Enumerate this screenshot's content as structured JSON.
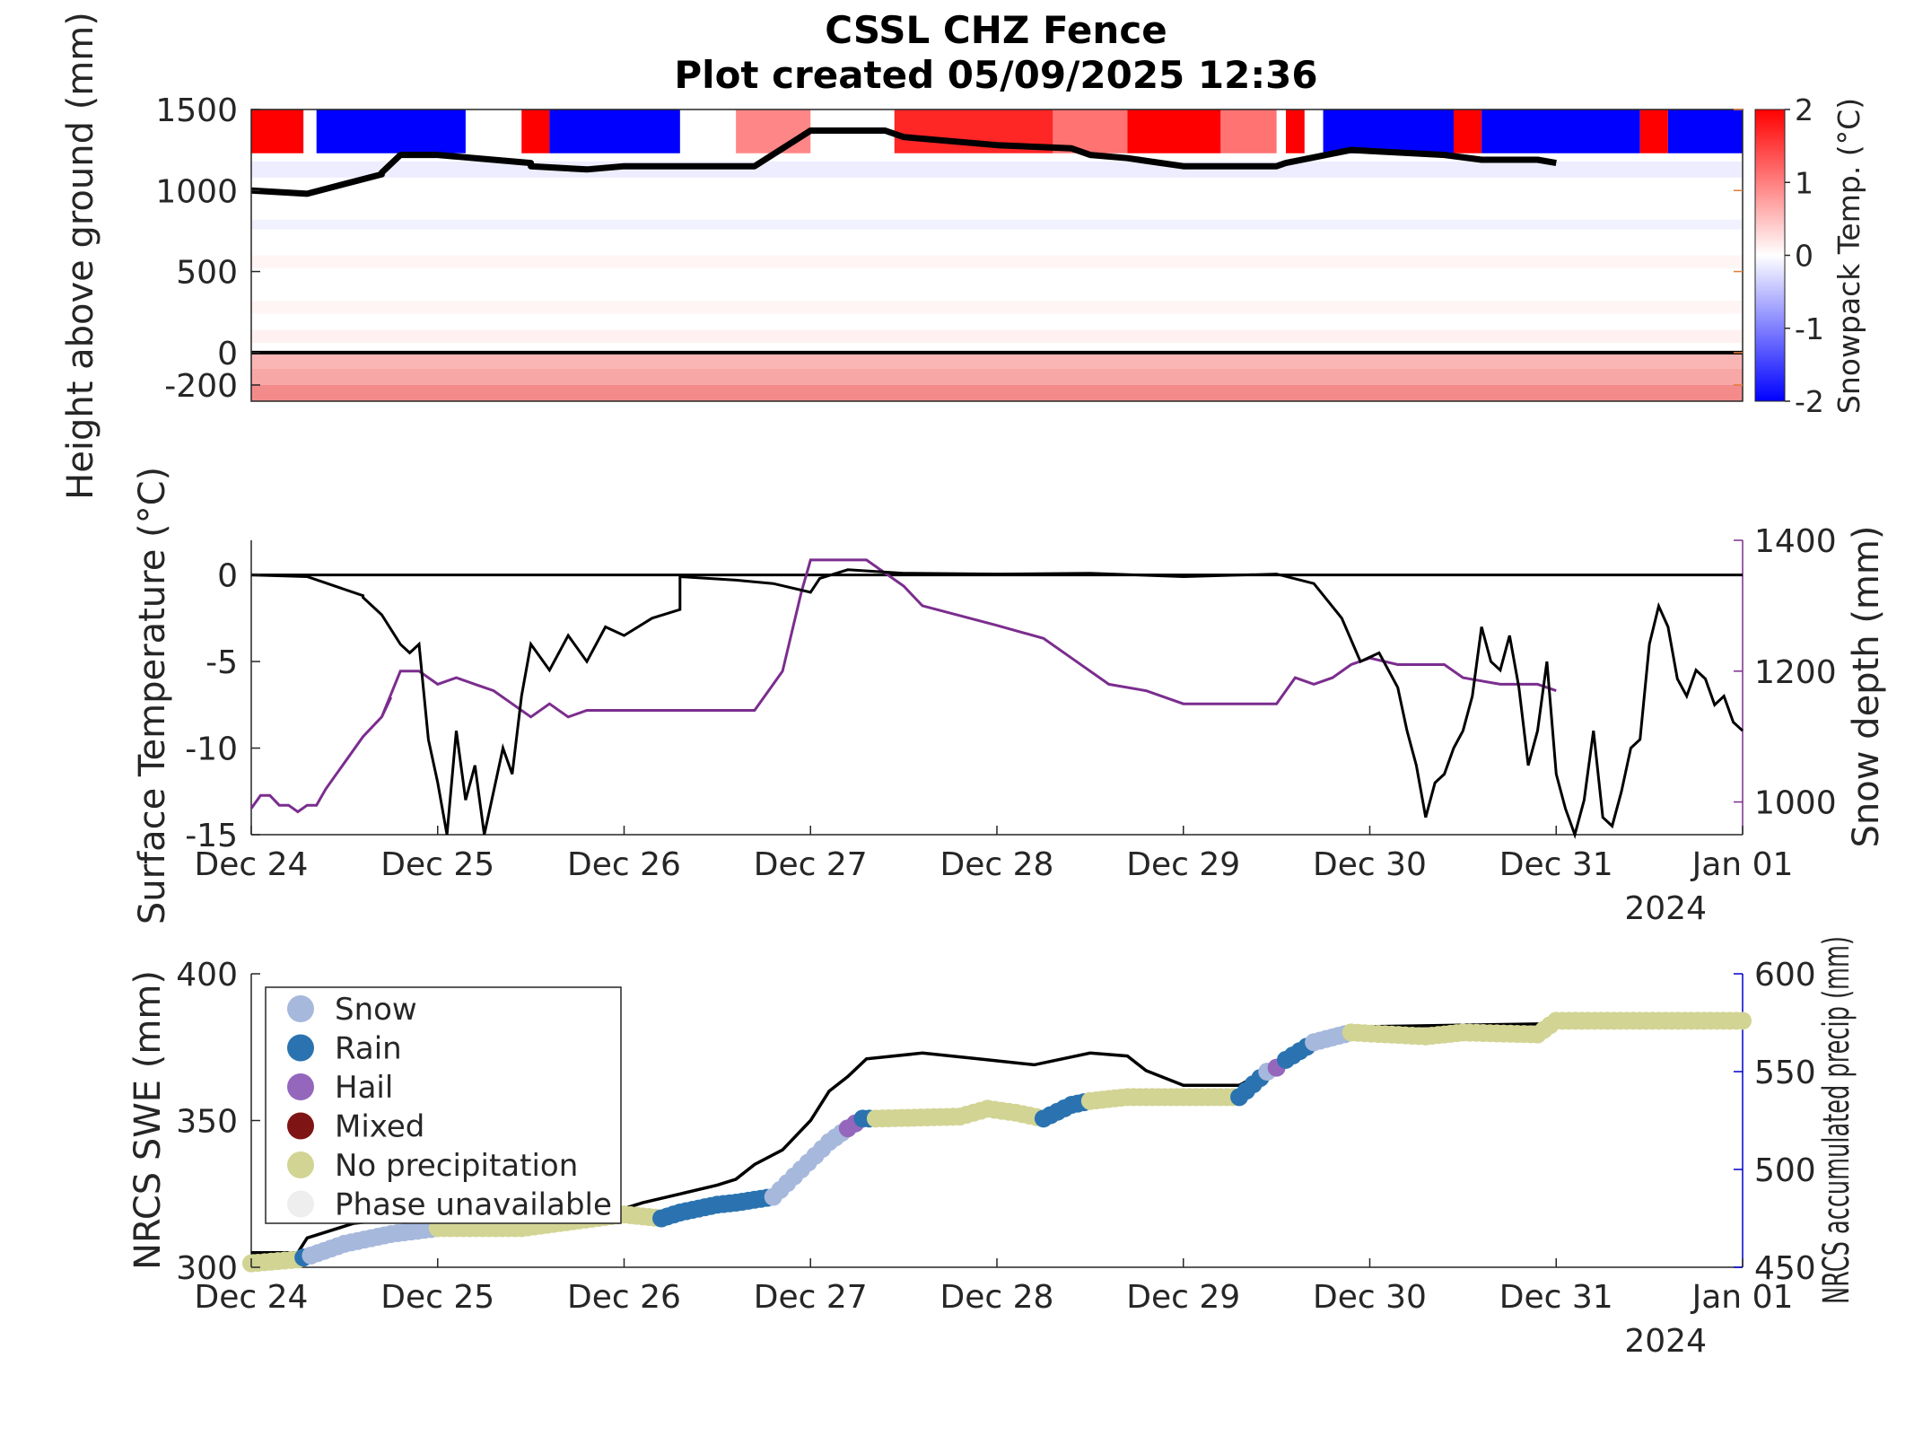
{
  "title": {
    "line1": "CSSL CHZ Fence",
    "line2": "Plot created 05/09/2025 12:36"
  },
  "colors": {
    "axis": "#262626",
    "swe_line": "#000000",
    "depth_line": "#7b2d8e",
    "right_axis_purple": "#7b2d8e",
    "right_axis_blue": "#0000cc",
    "snow": "#a6b8dc",
    "rain": "#2a73b0",
    "hail": "#9467bd",
    "mixed": "#7f1414",
    "no_precip": "#d2d494",
    "unavailable": "#eeeeee"
  },
  "shared_x": {
    "tick_labels": [
      "Dec 24",
      "Dec 25",
      "Dec 26",
      "Dec 27",
      "Dec 28",
      "Dec 29",
      "Dec 30",
      "Dec 31",
      "Jan 01"
    ],
    "year_label": "2024"
  },
  "chart_data": [
    {
      "type": "heatmap",
      "ylabel": "Height above ground (mm)",
      "ylim": [
        -300,
        1500
      ],
      "yticks": [
        "1500",
        "1000",
        "500",
        "0",
        "-200"
      ],
      "xlim_days": [
        0,
        8
      ],
      "colorbar": {
        "label": "Snowpack Temp. (°C)",
        "range": [
          -2,
          2
        ],
        "ticks": [
          "2",
          "1",
          "0",
          "-1",
          "-2"
        ]
      },
      "top_band_sign": [
        [
          0.0,
          0.28,
          1
        ],
        [
          0.35,
          1.15,
          -1
        ],
        [
          1.45,
          1.6,
          1
        ],
        [
          1.6,
          2.3,
          -1
        ],
        [
          2.6,
          3.0,
          0.3
        ],
        [
          3.45,
          4.3,
          0.8
        ],
        [
          4.3,
          4.7,
          0.4
        ],
        [
          4.7,
          5.2,
          1
        ],
        [
          5.2,
          5.5,
          0.4
        ],
        [
          5.55,
          5.65,
          1
        ],
        [
          5.75,
          6.45,
          -1
        ],
        [
          6.45,
          6.6,
          1
        ],
        [
          6.6,
          7.45,
          -1
        ],
        [
          7.45,
          7.6,
          1
        ],
        [
          7.6,
          8.0,
          -1
        ]
      ],
      "snow_surface_mm": [
        [
          0,
          1000
        ],
        [
          0.3,
          980
        ],
        [
          0.7,
          1100
        ],
        [
          0.7,
          1110
        ],
        [
          0.8,
          1220
        ],
        [
          1.0,
          1220
        ],
        [
          1.5,
          1170
        ],
        [
          1.5,
          1150
        ],
        [
          1.8,
          1130
        ],
        [
          2.0,
          1150
        ],
        [
          2.5,
          1150
        ],
        [
          2.7,
          1150
        ],
        [
          2.7,
          1150
        ],
        [
          3.0,
          1370
        ],
        [
          3.4,
          1370
        ],
        [
          3.5,
          1330
        ],
        [
          4.0,
          1280
        ],
        [
          4.4,
          1260
        ],
        [
          4.5,
          1220
        ],
        [
          4.7,
          1200
        ],
        [
          5.0,
          1150
        ],
        [
          5.5,
          1150
        ],
        [
          5.55,
          1170
        ],
        [
          5.9,
          1250
        ],
        [
          6.4,
          1220
        ],
        [
          6.6,
          1190
        ],
        [
          6.9,
          1190
        ],
        [
          7.0,
          1170
        ]
      ]
    },
    {
      "type": "line",
      "ylabel": "Surface Temperature (°C)",
      "ylabel_right": "Snow depth (mm)",
      "ylim": [
        -15,
        2
      ],
      "ylim_right": [
        950,
        1400
      ],
      "yticks": [
        "0",
        "-5",
        "-10",
        "-15"
      ],
      "yticks_right": [
        "1400",
        "1200",
        "1000"
      ],
      "series": [
        {
          "values": [
            [
              0,
              0
            ],
            [
              0.3,
              -0.1
            ],
            [
              0.6,
              -1.2
            ],
            [
              0.6,
              -1.3
            ],
            [
              0.7,
              -2.3
            ],
            [
              0.8,
              -4.0
            ],
            [
              0.85,
              -4.5
            ],
            [
              0.9,
              -4.0
            ],
            [
              0.95,
              -9.5
            ],
            [
              1.0,
              -12.0
            ],
            [
              1.05,
              -15.0
            ],
            [
              1.1,
              -9.0
            ],
            [
              1.15,
              -13.0
            ],
            [
              1.2,
              -11.0
            ],
            [
              1.25,
              -15.0
            ],
            [
              1.3,
              -12.5
            ],
            [
              1.35,
              -10.0
            ],
            [
              1.4,
              -11.5
            ],
            [
              1.45,
              -7.0
            ],
            [
              1.5,
              -4.0
            ],
            [
              1.6,
              -5.5
            ],
            [
              1.7,
              -3.5
            ],
            [
              1.8,
              -5.0
            ],
            [
              1.9,
              -3.0
            ],
            [
              2.0,
              -3.5
            ],
            [
              2.15,
              -2.5
            ],
            [
              2.3,
              -2.0
            ],
            [
              2.3,
              -0.1
            ],
            [
              2.6,
              -0.3
            ],
            [
              2.8,
              -0.5
            ],
            [
              3.0,
              -1.0
            ],
            [
              3.05,
              -0.2
            ],
            [
              3.2,
              0.3
            ],
            [
              3.5,
              0.1
            ],
            [
              4.0,
              0.05
            ],
            [
              4.5,
              0.1
            ],
            [
              5.0,
              -0.1
            ],
            [
              5.5,
              0.05
            ],
            [
              5.7,
              -0.5
            ],
            [
              5.85,
              -2.5
            ],
            [
              5.95,
              -5.0
            ],
            [
              6.05,
              -4.5
            ],
            [
              6.15,
              -6.5
            ],
            [
              6.2,
              -9.0
            ],
            [
              6.25,
              -11.0
            ],
            [
              6.3,
              -14.0
            ],
            [
              6.35,
              -12.0
            ],
            [
              6.4,
              -11.5
            ],
            [
              6.45,
              -10.0
            ],
            [
              6.5,
              -9.0
            ],
            [
              6.55,
              -7.0
            ],
            [
              6.6,
              -3.0
            ],
            [
              6.65,
              -5.0
            ],
            [
              6.7,
              -5.5
            ],
            [
              6.75,
              -3.5
            ],
            [
              6.8,
              -6.5
            ],
            [
              6.85,
              -11.0
            ],
            [
              6.9,
              -9.0
            ],
            [
              6.95,
              -5.0
            ],
            [
              7.0,
              -11.5
            ],
            [
              7.05,
              -13.5
            ],
            [
              7.1,
              -15.0
            ],
            [
              7.15,
              -13.0
            ],
            [
              7.2,
              -9.0
            ],
            [
              7.25,
              -14.0
            ],
            [
              7.3,
              -14.5
            ],
            [
              7.35,
              -12.5
            ],
            [
              7.4,
              -10.0
            ],
            [
              7.45,
              -9.5
            ],
            [
              7.5,
              -4.0
            ],
            [
              7.55,
              -1.8
            ],
            [
              7.6,
              -3.0
            ],
            [
              7.65,
              -6.0
            ],
            [
              7.7,
              -7.0
            ],
            [
              7.75,
              -5.5
            ],
            [
              7.8,
              -6.0
            ],
            [
              7.85,
              -7.5
            ],
            [
              7.9,
              -7.0
            ],
            [
              7.95,
              -8.5
            ],
            [
              8.0,
              -9.0
            ]
          ]
        },
        {
          "name": "Snow depth (mm)",
          "axis": "right",
          "values": [
            [
              0,
              990
            ],
            [
              0.05,
              1010
            ],
            [
              0.1,
              1010
            ],
            [
              0.15,
              995
            ],
            [
              0.2,
              995
            ],
            [
              0.25,
              985
            ],
            [
              0.3,
              995
            ],
            [
              0.35,
              995
            ],
            [
              0.4,
              1020
            ],
            [
              0.6,
              1100
            ],
            [
              0.7,
              1130
            ],
            [
              0.75,
              1160
            ],
            [
              0.7,
              1130
            ],
            [
              0.8,
              1200
            ],
            [
              0.9,
              1200
            ],
            [
              1.0,
              1180
            ],
            [
              1.1,
              1190
            ],
            [
              1.2,
              1180
            ],
            [
              1.3,
              1170
            ],
            [
              1.4,
              1150
            ],
            [
              1.5,
              1130
            ],
            [
              1.6,
              1150
            ],
            [
              1.7,
              1130
            ],
            [
              1.8,
              1140
            ],
            [
              2.0,
              1140
            ],
            [
              2.7,
              1140
            ],
            [
              2.8,
              1180
            ],
            [
              2.85,
              1200
            ],
            [
              2.95,
              1320
            ],
            [
              3.0,
              1370
            ],
            [
              3.3,
              1370
            ],
            [
              3.5,
              1330
            ],
            [
              3.6,
              1300
            ],
            [
              4.0,
              1270
            ],
            [
              4.25,
              1250
            ],
            [
              4.4,
              1220
            ],
            [
              4.6,
              1180
            ],
            [
              4.8,
              1170
            ],
            [
              5.0,
              1150
            ],
            [
              5.5,
              1150
            ],
            [
              5.55,
              1170
            ],
            [
              5.6,
              1190
            ],
            [
              5.7,
              1180
            ],
            [
              5.8,
              1190
            ],
            [
              5.9,
              1210
            ],
            [
              6.0,
              1220
            ],
            [
              6.15,
              1210
            ],
            [
              6.4,
              1210
            ],
            [
              6.5,
              1190
            ],
            [
              6.7,
              1180
            ],
            [
              6.9,
              1180
            ],
            [
              7.0,
              1170
            ]
          ]
        }
      ]
    },
    {
      "type": "scatter",
      "ylabel": "NRCS SWE (mm)",
      "ylabel_right": "NRCS accumulated precip (mm)",
      "ylim": [
        300,
        400
      ],
      "ylim_right": [
        450,
        600
      ],
      "yticks": [
        "400",
        "350",
        "300"
      ],
      "yticks_right": [
        "600",
        "550",
        "500",
        "450"
      ],
      "legend": {
        "placement": "top-left",
        "items": [
          {
            "label": "Snow",
            "color_key": "snow"
          },
          {
            "label": "Rain",
            "color_key": "rain"
          },
          {
            "label": "Hail",
            "color_key": "hail"
          },
          {
            "label": "Mixed",
            "color_key": "mixed"
          },
          {
            "label": "No precipitation",
            "color_key": "no_precip"
          },
          {
            "label": "Phase unavailable",
            "color_key": "unavailable"
          }
        ]
      },
      "swe_line": [
        [
          0,
          305
        ],
        [
          0.25,
          305
        ],
        [
          0.3,
          310
        ],
        [
          0.55,
          315
        ],
        [
          1.0,
          318
        ],
        [
          2.0,
          320
        ],
        [
          2.1,
          322
        ],
        [
          2.3,
          325
        ],
        [
          2.5,
          328
        ],
        [
          2.6,
          330
        ],
        [
          2.7,
          335
        ],
        [
          2.85,
          340
        ],
        [
          3.0,
          350
        ],
        [
          3.1,
          360
        ],
        [
          3.2,
          365
        ],
        [
          3.3,
          371
        ],
        [
          3.6,
          373
        ],
        [
          3.9,
          371
        ],
        [
          4.2,
          369
        ],
        [
          4.5,
          373
        ],
        [
          4.7,
          372
        ],
        [
          4.8,
          367
        ],
        [
          5.0,
          362
        ],
        [
          5.3,
          362
        ],
        [
          5.5,
          369
        ],
        [
          5.7,
          376
        ],
        [
          6.0,
          382
        ],
        [
          8.0,
          384
        ]
      ],
      "precip_points": [
        [
          0.0,
          452,
          "no_precip"
        ],
        [
          0.25,
          454,
          "no_precip"
        ],
        [
          0.28,
          455,
          "rain"
        ],
        [
          0.32,
          456,
          "snow"
        ],
        [
          0.5,
          462,
          "snow"
        ],
        [
          0.75,
          467,
          "snow"
        ],
        [
          1.0,
          470,
          "no_precip"
        ],
        [
          1.45,
          470,
          "no_precip"
        ],
        [
          2.0,
          477,
          "no_precip"
        ],
        [
          2.2,
          475,
          "rain"
        ],
        [
          2.3,
          478,
          "rain"
        ],
        [
          2.5,
          482,
          "rain"
        ],
        [
          2.6,
          483,
          "rain"
        ],
        [
          2.8,
          486,
          "snow"
        ],
        [
          2.95,
          500,
          "snow"
        ],
        [
          3.1,
          514,
          "snow"
        ],
        [
          3.2,
          521,
          "hail"
        ],
        [
          3.28,
          526,
          "rain"
        ],
        [
          3.35,
          526,
          "no_precip"
        ],
        [
          3.8,
          527,
          "no_precip"
        ],
        [
          3.95,
          531,
          "no_precip"
        ],
        [
          4.1,
          529,
          "no_precip"
        ],
        [
          4.25,
          526,
          "rain"
        ],
        [
          4.4,
          533,
          "rain"
        ],
        [
          4.5,
          535,
          "no_precip"
        ],
        [
          4.7,
          537,
          "no_precip"
        ],
        [
          5.0,
          537,
          "no_precip"
        ],
        [
          5.3,
          537,
          "rain"
        ],
        [
          5.45,
          550,
          "snow"
        ],
        [
          5.5,
          552,
          "hail"
        ],
        [
          5.55,
          556,
          "rain"
        ],
        [
          5.7,
          565,
          "snow"
        ],
        [
          5.9,
          570,
          "no_precip"
        ],
        [
          6.3,
          568,
          "no_precip"
        ],
        [
          6.5,
          570,
          "no_precip"
        ],
        [
          6.9,
          569,
          "no_precip"
        ],
        [
          7.0,
          576,
          "no_precip"
        ],
        [
          8.0,
          576,
          "no_precip"
        ]
      ]
    }
  ]
}
